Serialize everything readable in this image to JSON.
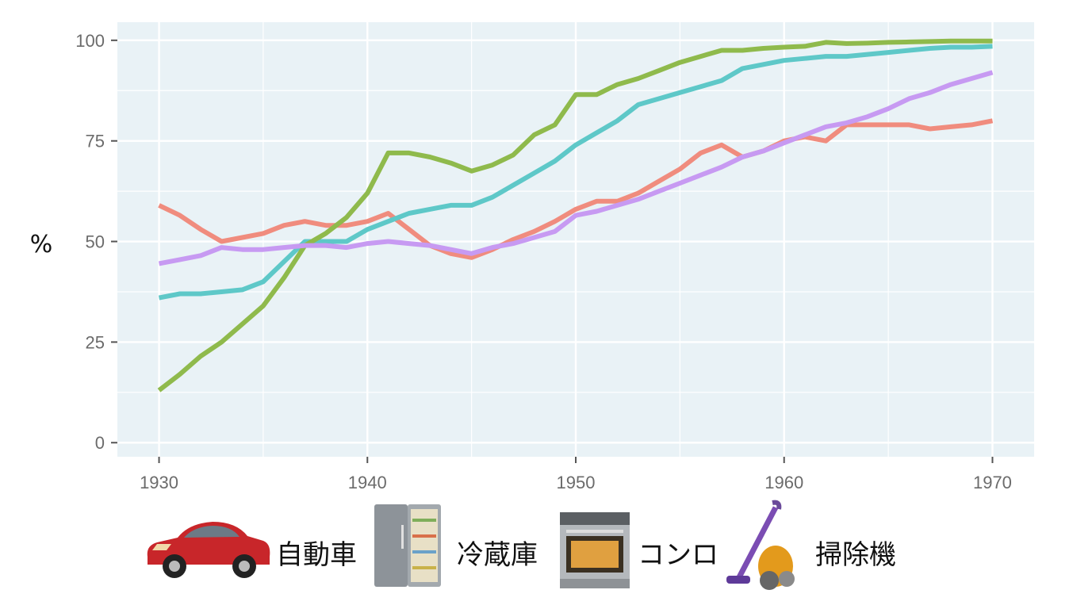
{
  "chart_data": {
    "type": "line",
    "title": "",
    "xlabel": "",
    "ylabel": "%",
    "xlim": [
      1928,
      1972
    ],
    "ylim": [
      -3.5,
      104.5
    ],
    "x_ticks": [
      1930,
      1940,
      1950,
      1960,
      1970
    ],
    "y_ticks": [
      0,
      25,
      50,
      75,
      100
    ],
    "grid": true,
    "legend_position": "bottom",
    "x": [
      1930,
      1931,
      1932,
      1933,
      1934,
      1935,
      1936,
      1937,
      1938,
      1939,
      1940,
      1941,
      1942,
      1943,
      1944,
      1945,
      1946,
      1947,
      1948,
      1949,
      1950,
      1951,
      1952,
      1953,
      1954,
      1955,
      1956,
      1957,
      1958,
      1959,
      1960,
      1961,
      1962,
      1963,
      1964,
      1965,
      1966,
      1967,
      1968,
      1969,
      1970
    ],
    "series": [
      {
        "name": "自動車",
        "icon": "car-icon",
        "color": "#f08c7e",
        "values": [
          59,
          56.5,
          53,
          50,
          51,
          52,
          54,
          55,
          54,
          54,
          55,
          57,
          53,
          49,
          47,
          46,
          48,
          50.5,
          52.5,
          55,
          58,
          60,
          60,
          62,
          65,
          68,
          72,
          74,
          71,
          72.5,
          75,
          76,
          75,
          79,
          79,
          79,
          79,
          78,
          78.5,
          79,
          80
        ]
      },
      {
        "name": "冷蔵庫",
        "icon": "refrigerator-icon",
        "color": "#5ec8c8",
        "values": [
          36,
          37,
          37,
          37.5,
          38,
          40,
          45,
          50,
          50,
          50,
          53,
          55,
          57,
          58,
          59,
          59,
          61,
          64,
          67,
          70,
          74,
          77,
          80,
          84,
          85.5,
          87,
          88.5,
          90,
          93,
          94,
          95,
          95.5,
          96,
          96,
          96.5,
          97,
          97.5,
          98,
          98.3,
          98.3,
          98.5
        ]
      },
      {
        "name": "コンロ",
        "icon": "stove-icon",
        "color": "#8fba4c",
        "values": [
          13,
          17,
          21.5,
          25,
          29.5,
          34,
          41,
          49,
          52,
          56,
          62,
          72,
          72,
          71,
          69.5,
          67.5,
          69,
          71.5,
          76.5,
          79,
          86.5,
          86.5,
          89,
          90.5,
          92.5,
          94.5,
          96,
          97.5,
          97.5,
          98,
          98.3,
          98.5,
          99.5,
          99.2,
          99.3,
          99.5,
          99.6,
          99.7,
          99.8,
          99.8,
          99.8
        ]
      },
      {
        "name": "掃除機",
        "icon": "vacuum-icon",
        "color": "#c79af2",
        "values": [
          44.5,
          45.5,
          46.5,
          48.5,
          48,
          48,
          48.5,
          49,
          49,
          48.5,
          49.5,
          50,
          49.5,
          49,
          48,
          47,
          48.5,
          49.5,
          51,
          52.5,
          56.5,
          57.5,
          59,
          60.5,
          62.5,
          64.5,
          66.5,
          68.5,
          71,
          72.5,
          74.5,
          76.5,
          78.5,
          79.5,
          81,
          83,
          85.5,
          87,
          89,
          90.5,
          92
        ]
      }
    ]
  }
}
